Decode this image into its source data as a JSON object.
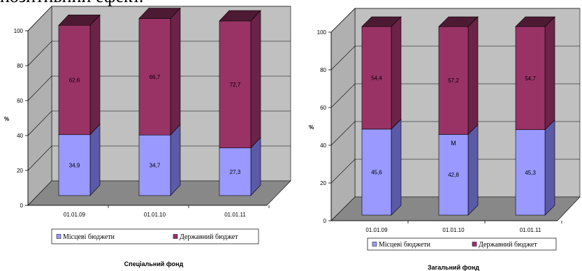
{
  "heading_fragment": "позитивний ефект.",
  "colors": {
    "local_front": "#9999ff",
    "local_side": "#5a5aa8",
    "local_top": "#7878c8",
    "state_front": "#993366",
    "state_side": "#6b2347",
    "state_top": "#4d1a33",
    "wall": "#c0c0c0",
    "floor": "#888888"
  },
  "chart_data": [
    {
      "type": "bar",
      "stacked": true,
      "three_d": true,
      "title": "Спеціальний фонд",
      "ylabel": "%",
      "ylim": [
        0,
        100
      ],
      "yticks": [
        "0",
        "20",
        "40",
        "60",
        "80",
        "100"
      ],
      "categories": [
        "01.01.09",
        "01.01.10",
        "01.01.11"
      ],
      "series": [
        {
          "name": "Місцеві бюджети",
          "values": [
            34.9,
            34.7,
            27.3
          ],
          "labels": [
            "34,9",
            "34,7",
            "27,3"
          ]
        },
        {
          "name": "Державний бюджет",
          "values": [
            62.6,
            66.7,
            72.7
          ],
          "labels": [
            "62,6",
            "66,7",
            "72,7"
          ]
        }
      ],
      "grid": true,
      "legend": "bottom"
    },
    {
      "type": "bar",
      "stacked": true,
      "three_d": true,
      "title": "Загальний фонд",
      "ylabel": "%",
      "ylim": [
        0,
        100
      ],
      "yticks": [
        "0",
        "20",
        "40",
        "60",
        "80",
        "100"
      ],
      "categories": [
        "01.01.09",
        "01.01.10",
        "01.01.11"
      ],
      "series": [
        {
          "name": "Місцеві бюджети",
          "values": [
            45.6,
            42.8,
            45.3
          ],
          "labels": [
            "45,6",
            "42,8",
            "45,3"
          ]
        },
        {
          "name": "Державний бюджет",
          "values": [
            54.4,
            57.2,
            54.7
          ],
          "labels": [
            "54,4",
            "57,2",
            "54,7"
          ]
        }
      ],
      "annotation": {
        "category": 1,
        "value": 37,
        "text": "M"
      },
      "grid": true,
      "legend": "bottom"
    }
  ]
}
